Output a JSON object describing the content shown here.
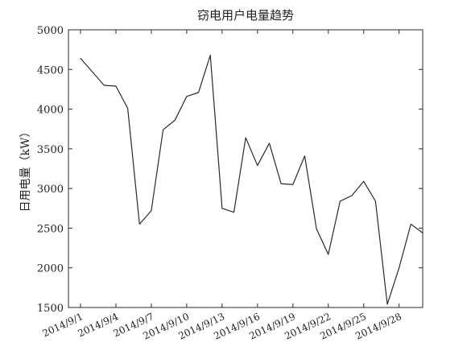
{
  "chart_data": {
    "type": "line",
    "title": "窃电用户电量趋势",
    "xlabel": "",
    "ylabel": "日用电量（kW）",
    "ylim": [
      1500,
      5000
    ],
    "yticks": [
      1500,
      2000,
      2500,
      3000,
      3500,
      4000,
      4500,
      5000
    ],
    "xticks": [
      "2014/9/1",
      "2014/9/4",
      "2014/9/7",
      "2014/9/10",
      "2014/9/13",
      "2014/9/16",
      "2014/9/19",
      "2014/9/22",
      "2014/9/25",
      "2014/9/28"
    ],
    "x": [
      "2014/9/1",
      "2014/9/2",
      "2014/9/3",
      "2014/9/4",
      "2014/9/5",
      "2014/9/6",
      "2014/9/7",
      "2014/9/8",
      "2014/9/9",
      "2014/9/10",
      "2014/9/11",
      "2014/9/12",
      "2014/9/13",
      "2014/9/14",
      "2014/9/15",
      "2014/9/16",
      "2014/9/17",
      "2014/9/18",
      "2014/9/19",
      "2014/9/20",
      "2014/9/21",
      "2014/9/22",
      "2014/9/23",
      "2014/9/24",
      "2014/9/25",
      "2014/9/26",
      "2014/9/27",
      "2014/9/28",
      "2014/9/29",
      "2014/9/30"
    ],
    "values": [
      4640,
      4470,
      4300,
      4290,
      4010,
      2550,
      2720,
      3740,
      3860,
      4160,
      4210,
      4680,
      2750,
      2700,
      3640,
      3290,
      3570,
      3060,
      3050,
      3410,
      2490,
      2170,
      2840,
      2910,
      3090,
      2840,
      1540,
      2000,
      2550,
      2440
    ],
    "grid": false,
    "line_color": "#2a2a2a"
  }
}
